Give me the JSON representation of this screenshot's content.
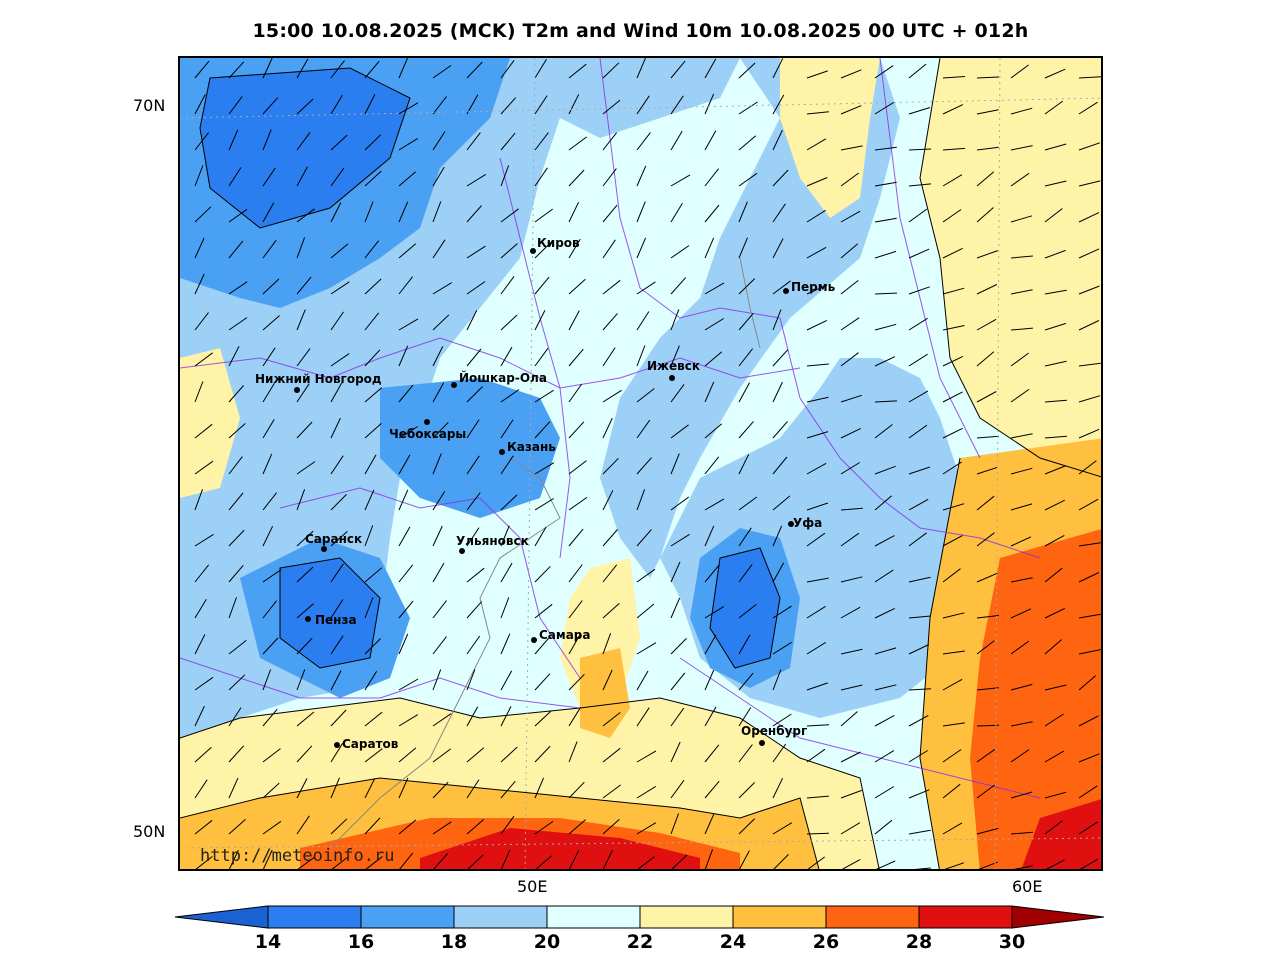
{
  "title": "15:00 10.08.2025 (MCK) T2m and Wind 10m 10.08.2025 00 UTC + 012h",
  "lat_labels": [
    "70N",
    "50N"
  ],
  "lon_labels": [
    "50E",
    "60E"
  ],
  "watermark": "http://meteoinfo.ru",
  "cities": [
    {
      "name": "Киров"
    },
    {
      "name": "Пермь"
    },
    {
      "name": "Нижний Новгород"
    },
    {
      "name": "Йошкар-Ола"
    },
    {
      "name": "Ижевск"
    },
    {
      "name": "Чебоксары"
    },
    {
      "name": "Казань"
    },
    {
      "name": "Уфа"
    },
    {
      "name": "Саранск"
    },
    {
      "name": "Ульяновск"
    },
    {
      "name": "Пенза"
    },
    {
      "name": "Самара"
    },
    {
      "name": "Оренбург"
    },
    {
      "name": "Саратов"
    }
  ],
  "colorbar": {
    "ticks": [
      "14",
      "16",
      "18",
      "20",
      "22",
      "24",
      "26",
      "28",
      "30"
    ],
    "colors": [
      "#1a62d1",
      "#2b7ef0",
      "#4aa0f2",
      "#9dd0f7",
      "#e0ffff",
      "#fff3a8",
      "#ffc040",
      "#ff6410",
      "#e01010",
      "#a00000"
    ]
  },
  "palette": {
    "t14_16": "#2b7ef0",
    "t16_18": "#4aa0f2",
    "t18_20": "#9dd0f7",
    "t20_22": "#e0ffff",
    "t22_24": "#fff3a8",
    "t24_26": "#ffc040",
    "t26_28": "#ff6410",
    "t28_30": "#e01010",
    "t30p": "#a00000",
    "borders": "#8a2be2",
    "rivers": "#888888"
  }
}
